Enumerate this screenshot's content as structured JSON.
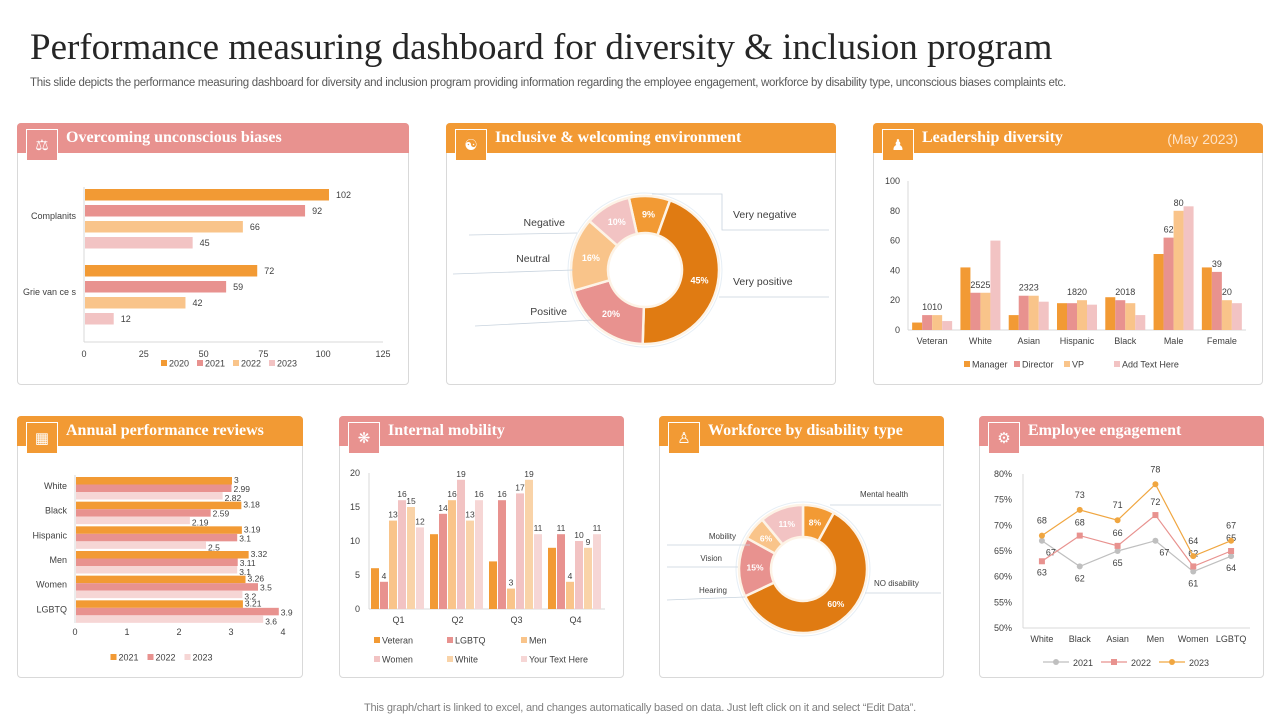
{
  "header": {
    "title": "Performance measuring dashboard for diversity & inclusion program",
    "subtitle": "This slide depicts the performance measuring dashboard for diversity and inclusion program providing information regarding the employee engagement, workforce by disability type,  unconscious biases complaints etc."
  },
  "footer": "This graph/chart is linked to excel,  and changes automatically based on data. Just left click on it and select “Edit Data”.",
  "colors": {
    "orange": "#f29a34",
    "dark_orange": "#e07b12",
    "pink": "#e8928f",
    "peach": "#f9c48a",
    "light_pink": "#f2c3c3",
    "very_light_pink": "#f6d6d5",
    "gray": "#bfbfbf"
  },
  "panels": {
    "biases": {
      "title": "Overcoming unconscious biases",
      "icon": "person-balance-icon"
    },
    "inclusive": {
      "title": "Inclusive & welcoming  environment",
      "icon": "team-hands-icon"
    },
    "leadership": {
      "title": "Leadership diversity",
      "date": "(May 2023)",
      "icon": "leadership-group-icon"
    },
    "reviews": {
      "title": "Annual performance  reviews",
      "icon": "review-board-icon"
    },
    "mobility": {
      "title": "Internal mobility",
      "icon": "network-icon"
    },
    "disability": {
      "title": "Workforce  by disability  type",
      "icon": "people-hierarchy-icon"
    },
    "engagement": {
      "title": "Employee  engagement",
      "icon": "engagement-icon"
    }
  },
  "chart_data": [
    {
      "id": "biases",
      "type": "bar",
      "orientation": "horizontal",
      "title": "Overcoming unconscious biases",
      "categories": [
        "Complanits",
        "Grie van ce s"
      ],
      "series": [
        {
          "name": "2020",
          "values": [
            102,
            72
          ]
        },
        {
          "name": "2021",
          "values": [
            92,
            59
          ]
        },
        {
          "name": "2022",
          "values": [
            66,
            42
          ]
        },
        {
          "name": "2023",
          "values": [
            45,
            12
          ]
        }
      ],
      "xlim": [
        0,
        125
      ],
      "ticks": [
        0,
        25,
        50,
        75,
        100,
        125
      ],
      "legend": "bottom"
    },
    {
      "id": "inclusive",
      "type": "pie",
      "donut": true,
      "title": "Inclusive & welcoming environment",
      "slices": [
        {
          "label": "Very negative",
          "value": 9
        },
        {
          "label": "Very positive",
          "value": 45
        },
        {
          "label": "Positive",
          "value": 20
        },
        {
          "label": "Neutral",
          "value": 16
        },
        {
          "label": "Negative",
          "value": 10
        }
      ]
    },
    {
      "id": "leadership",
      "type": "bar",
      "orientation": "vertical",
      "title": "Leadership diversity (May 2023)",
      "categories": [
        "Veteran",
        "White",
        "Asian",
        "Hispanic",
        "Black",
        "Male",
        "Female"
      ],
      "series": [
        {
          "name": "Manager",
          "values": [
            5,
            42,
            10,
            18,
            22,
            51,
            42
          ]
        },
        {
          "name": "Director",
          "values": [
            10,
            25,
            23,
            18,
            20,
            62,
            39
          ]
        },
        {
          "name": "VP",
          "values": [
            10,
            25,
            23,
            20,
            18,
            80,
            20
          ]
        },
        {
          "name": "Add Text Here",
          "values": [
            6,
            60,
            19,
            17,
            10,
            83,
            18
          ]
        }
      ],
      "data_labels": [
        {
          "category": 0,
          "text": "1010"
        },
        {
          "category": 1,
          "text": "2525"
        },
        {
          "category": 2,
          "text": "2323"
        },
        {
          "category": 3,
          "text": "1820"
        },
        {
          "category": 4,
          "text": "2018"
        },
        {
          "category": 5,
          "series": 1,
          "text": "62"
        },
        {
          "category": 5,
          "series": 2,
          "text": "80"
        },
        {
          "category": 6,
          "series": 1,
          "text": "39"
        },
        {
          "category": 6,
          "series": 2,
          "text": "20"
        }
      ],
      "ylim": [
        0,
        100
      ],
      "ticks": [
        0,
        20,
        40,
        60,
        80,
        100
      ],
      "legend": "bottom"
    },
    {
      "id": "reviews",
      "type": "bar",
      "orientation": "horizontal",
      "title": "Annual performance reviews",
      "categories": [
        "White",
        "Black",
        "Hispanic",
        "Men",
        "Women",
        "LGBTQ"
      ],
      "series": [
        {
          "name": "2021",
          "values": [
            3,
            3.18,
            3.19,
            3.32,
            3.26,
            3.21
          ]
        },
        {
          "name": "2022",
          "values": [
            2.99,
            2.59,
            3.1,
            3.11,
            3.5,
            3.9
          ]
        },
        {
          "name": "2023",
          "values": [
            2.82,
            2.19,
            2.5,
            3.1,
            3.2,
            3.6
          ]
        }
      ],
      "xlim": [
        0,
        4
      ],
      "ticks": [
        0,
        1,
        2,
        3,
        4
      ],
      "legend": "bottom"
    },
    {
      "id": "mobility",
      "type": "bar",
      "orientation": "vertical",
      "title": "Internal mobility",
      "categories": [
        "Q1",
        "Q2",
        "Q3",
        "Q4"
      ],
      "series": [
        {
          "name": "Veteran",
          "values": [
            6,
            11,
            7,
            9
          ]
        },
        {
          "name": "LGBTQ",
          "values": [
            4,
            14,
            16,
            11
          ]
        },
        {
          "name": "Men",
          "values": [
            13,
            16,
            3,
            4
          ]
        },
        {
          "name": "Women",
          "values": [
            16,
            19,
            17,
            10
          ]
        },
        {
          "name": "White",
          "values": [
            15,
            13,
            19,
            9
          ]
        },
        {
          "name": "Your Text Here",
          "values": [
            12,
            16,
            11,
            11
          ]
        }
      ],
      "labeled_series": [
        1,
        2,
        3,
        4,
        5
      ],
      "ylim": [
        0,
        20
      ],
      "ticks": [
        0,
        5,
        10,
        15,
        20
      ],
      "legend": "bottom"
    },
    {
      "id": "disability",
      "type": "pie",
      "donut": true,
      "title": "Workforce by disability type",
      "slices": [
        {
          "label": "Mental health",
          "value": 8
        },
        {
          "label": "NO disability",
          "value": 60
        },
        {
          "label": "Hearing",
          "value": 15
        },
        {
          "label": "Vision",
          "value": 6
        },
        {
          "label": "Mobility",
          "value": 11
        }
      ]
    },
    {
      "id": "engagement",
      "type": "line",
      "title": "Employee engagement",
      "categories": [
        "White",
        "Black",
        "Asian",
        "Men",
        "Women",
        "LGBTQ"
      ],
      "series": [
        {
          "name": "2021",
          "values": [
            67,
            62,
            65,
            67,
            61,
            64
          ]
        },
        {
          "name": "2022",
          "values": [
            63,
            68,
            66,
            72,
            62,
            65
          ]
        },
        {
          "name": "2023",
          "values": [
            68,
            73,
            71,
            78,
            64,
            67
          ]
        }
      ],
      "ylim": [
        50,
        80
      ],
      "ticks": [
        "50%",
        "55%",
        "60%",
        "65%",
        "70%",
        "75%",
        "80%"
      ],
      "legend": "bottom"
    }
  ]
}
